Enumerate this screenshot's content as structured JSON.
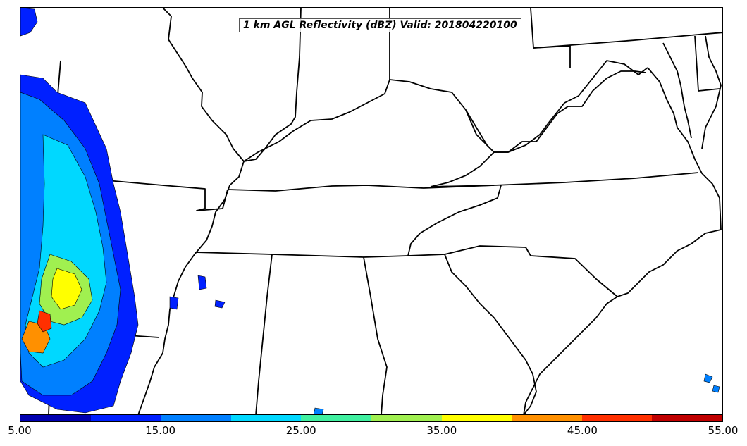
{
  "title": "1 km AGL Reflectivity (dBZ) Valid: 201804220100",
  "colorbar": {
    "colors": [
      "#0000b0",
      "#0020ff",
      "#0080ff",
      "#00d8ff",
      "#40f0a0",
      "#a0f050",
      "#ffff00",
      "#ff9000",
      "#ff3000",
      "#c00000"
    ],
    "tick_labels": [
      "5.00",
      "15.00",
      "25.00",
      "35.00",
      "45.00",
      "55.00"
    ]
  },
  "map": {
    "region": "southeastern United States",
    "boundary_color": "#000000"
  }
}
